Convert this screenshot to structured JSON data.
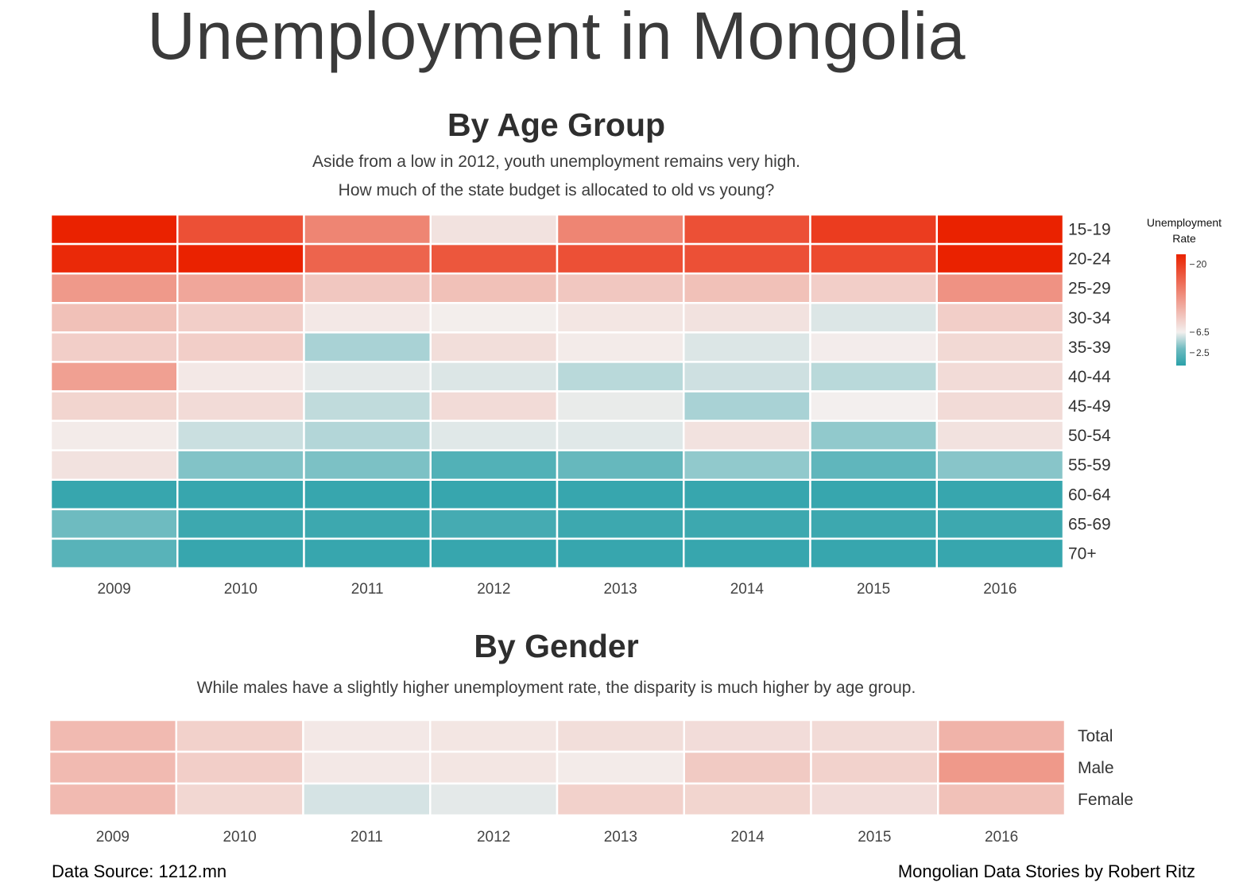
{
  "title": "Unemployment in Mongolia",
  "colors": {
    "high": "#ea2200",
    "mid": "#f3efee",
    "low": "#2aa1a9"
  },
  "legend": {
    "title_line1": "Unemployment",
    "title_line2": "Rate",
    "ticks": [
      20,
      6.5,
      2.5
    ]
  },
  "footer": {
    "source": "Data Source: 1212.mn",
    "credit": "Mongolian Data Stories by Robert Ritz"
  },
  "chart_data": [
    {
      "type": "heatmap",
      "title": "By Age Group",
      "subtitle_line1": "Aside from a low in 2012, youth unemployment remains very high.",
      "subtitle_line2": "How much of the state budget is allocated to old vs young?",
      "x": [
        "2009",
        "2010",
        "2011",
        "2012",
        "2013",
        "2014",
        "2015",
        "2016"
      ],
      "y": [
        "15-19",
        "20-24",
        "25-29",
        "30-34",
        "35-39",
        "40-44",
        "45-49",
        "50-54",
        "55-59",
        "60-64",
        "65-69",
        "70+"
      ],
      "color_scale": {
        "label": "Unemployment Rate",
        "min": 0,
        "mid": 6.5,
        "max": 22
      },
      "values": [
        [
          22.0,
          18.5,
          14.5,
          7.5,
          14.5,
          18.5,
          20.0,
          22.0
        ],
        [
          21.5,
          22.0,
          17.0,
          18.0,
          18.5,
          18.5,
          19.0,
          22.0
        ],
        [
          13.0,
          12.0,
          9.5,
          10.0,
          9.5,
          10.0,
          9.0,
          13.5
        ],
        [
          10.0,
          9.0,
          7.0,
          6.6,
          7.2,
          7.5,
          6.0,
          9.0
        ],
        [
          9.0,
          9.0,
          4.5,
          7.8,
          6.8,
          6.0,
          6.7,
          8.2
        ],
        [
          12.5,
          7.0,
          6.2,
          6.0,
          5.0,
          5.6,
          5.0,
          8.0
        ],
        [
          8.5,
          8.0,
          5.2,
          8.0,
          6.3,
          4.5,
          6.5,
          8.0
        ],
        [
          6.8,
          5.5,
          4.8,
          6.1,
          6.1,
          7.5,
          3.7,
          7.5
        ],
        [
          7.5,
          3.2,
          3.0,
          1.5,
          2.2,
          3.7,
          2.0,
          3.4
        ],
        [
          0.5,
          0.5,
          0.5,
          0.5,
          0.5,
          0.5,
          0.5,
          0.5
        ],
        [
          2.5,
          0.7,
          0.7,
          1.0,
          0.7,
          0.7,
          0.7,
          0.7
        ],
        [
          1.7,
          0.5,
          0.5,
          0.5,
          0.5,
          0.5,
          0.5,
          0.5
        ]
      ]
    },
    {
      "type": "heatmap",
      "title": "By Gender",
      "subtitle_line1": "While males have a slightly higher unemployment rate, the disparity is much higher by age group.",
      "x": [
        "2009",
        "2010",
        "2011",
        "2012",
        "2013",
        "2014",
        "2015",
        "2016"
      ],
      "y": [
        "Total",
        "Male",
        "Female"
      ],
      "color_scale": {
        "label": "Unemployment Rate",
        "min": 0,
        "mid": 6.5,
        "max": 22
      },
      "values": [
        [
          10.5,
          8.8,
          7.0,
          7.2,
          7.8,
          7.9,
          8.0,
          11.0
        ],
        [
          10.5,
          9.0,
          7.0,
          7.2,
          6.8,
          9.3,
          8.7,
          13.0
        ],
        [
          10.5,
          8.3,
          5.8,
          6.2,
          8.8,
          8.5,
          7.9,
          10.0
        ]
      ]
    }
  ]
}
